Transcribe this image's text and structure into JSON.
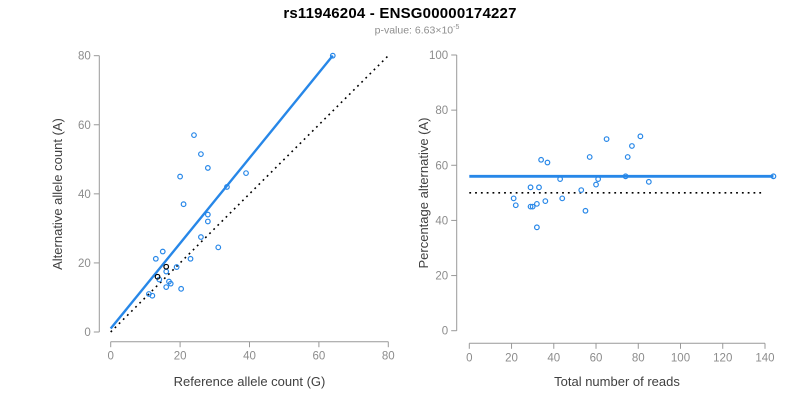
{
  "title": "rs11946204 - ENSG00000174227",
  "subtitle": {
    "text": "p-value: 6.63×10",
    "exponent": "-5"
  },
  "colors": {
    "accent_blue": "#2787e8",
    "dotted_black": "#000000",
    "axis_gray": "#999999",
    "tick_label_gray": "#8c8c8c",
    "axis_title_gray": "#404040",
    "subtitle_gray": "#8e8e8e",
    "background": "#ffffff"
  },
  "chart_data": [
    {
      "id": "ref-vs-alt-scatter",
      "type": "scatter",
      "xlabel": "Reference allele count (G)",
      "ylabel": "Alternative allele count (A)",
      "xlim": [
        0,
        80
      ],
      "ylim": [
        0,
        80
      ],
      "xticks": [
        0,
        20,
        40,
        60,
        80
      ],
      "yticks": [
        0,
        20,
        40,
        60,
        80
      ],
      "grid": false,
      "legend": false,
      "points": [
        [
          64,
          80
        ],
        [
          24,
          57
        ],
        [
          26,
          51.5
        ],
        [
          28,
          47.5
        ],
        [
          39,
          46
        ],
        [
          20,
          45
        ],
        [
          33.5,
          42
        ],
        [
          21,
          37
        ],
        [
          28,
          34
        ],
        [
          28,
          32
        ],
        [
          26,
          27.5
        ],
        [
          31,
          24.5
        ],
        [
          15,
          23.3
        ],
        [
          13,
          21.2
        ],
        [
          23,
          21.2
        ],
        [
          19,
          18.8
        ],
        [
          16,
          17.5
        ],
        [
          14,
          15.2
        ],
        [
          16.8,
          14.6
        ],
        [
          17.3,
          14
        ],
        [
          16,
          13
        ],
        [
          20.3,
          12.5
        ],
        [
          11,
          11
        ],
        [
          12,
          10.5
        ]
      ],
      "black_points": [
        [
          16,
          18.9
        ],
        [
          13.5,
          16
        ]
      ],
      "fit_line": {
        "x1": 0,
        "y1": 1,
        "x2": 64,
        "y2": 80,
        "marker_end": true
      },
      "identity_line": {
        "x1": 0,
        "y1": 0,
        "x2": 80,
        "y2": 80
      }
    },
    {
      "id": "reads-vs-percentage-scatter",
      "type": "scatter",
      "xlabel": "Total number of reads",
      "ylabel": "Percentage alternative (A)",
      "xlim": [
        0,
        145
      ],
      "ylim": [
        0,
        100
      ],
      "xticks": [
        0,
        20,
        40,
        60,
        80,
        100,
        120,
        140
      ],
      "yticks": [
        0,
        20,
        40,
        60,
        80,
        100
      ],
      "grid": false,
      "legend": false,
      "points": [
        [
          144,
          56
        ],
        [
          85,
          54
        ],
        [
          81,
          70.5
        ],
        [
          77,
          67
        ],
        [
          75,
          63
        ],
        [
          74,
          56
        ],
        [
          65,
          69.5
        ],
        [
          61,
          55
        ],
        [
          60,
          53
        ],
        [
          57,
          63
        ],
        [
          55,
          43.5
        ],
        [
          53,
          51
        ],
        [
          44,
          48
        ],
        [
          43,
          55
        ],
        [
          37,
          61
        ],
        [
          36,
          47
        ],
        [
          34,
          62
        ],
        [
          33,
          52
        ],
        [
          32,
          46
        ],
        [
          32,
          37.5
        ],
        [
          30,
          45
        ],
        [
          29,
          52
        ],
        [
          29,
          45
        ],
        [
          22,
          45.5
        ],
        [
          21,
          48
        ]
      ],
      "black_points": [],
      "fit_line": {
        "x1": 0,
        "y1": 56,
        "x2": 144,
        "y2": 56,
        "marker_end": true
      },
      "identity_line": {
        "x1": 0,
        "y1": 50,
        "x2": 139,
        "y2": 50
      }
    }
  ]
}
